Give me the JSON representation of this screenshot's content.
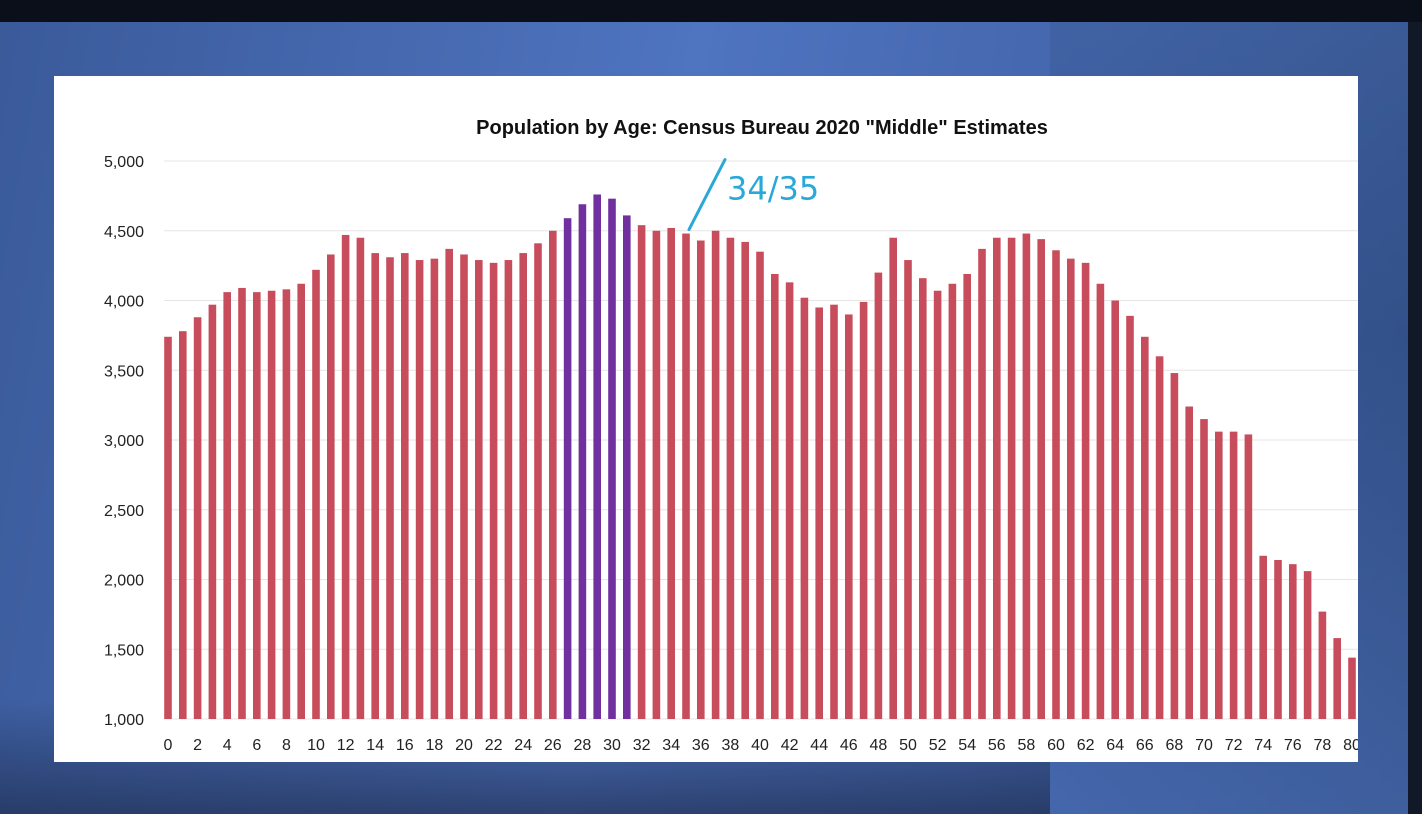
{
  "chart_data": {
    "type": "bar",
    "title": "Population by Age: Census Bureau 2020 \"Middle\" Estimates",
    "xlabel": "",
    "ylabel": "",
    "ylim": [
      1000,
      5000
    ],
    "yticks": [
      "1,000",
      "1,500",
      "2,000",
      "2,500",
      "3,000",
      "3,500",
      "4,000",
      "4,500",
      "5,000"
    ],
    "ytick_values": [
      1000,
      1500,
      2000,
      2500,
      3000,
      3500,
      4000,
      4500,
      5000
    ],
    "xticks": [
      "0",
      "2",
      "4",
      "6",
      "8",
      "10",
      "12",
      "14",
      "16",
      "18",
      "20",
      "22",
      "24",
      "26",
      "28",
      "30",
      "32",
      "34",
      "36",
      "38",
      "40",
      "42",
      "44",
      "46",
      "48",
      "50",
      "52",
      "54",
      "56",
      "58",
      "60",
      "62",
      "64",
      "66",
      "68",
      "70",
      "72",
      "74",
      "76",
      "78",
      "80"
    ],
    "categories": [
      0,
      1,
      2,
      3,
      4,
      5,
      6,
      7,
      8,
      9,
      10,
      11,
      12,
      13,
      14,
      15,
      16,
      17,
      18,
      19,
      20,
      21,
      22,
      23,
      24,
      25,
      26,
      27,
      28,
      29,
      30,
      31,
      32,
      33,
      34,
      35,
      36,
      37,
      38,
      39,
      40,
      41,
      42,
      43,
      44,
      45,
      46,
      47,
      48,
      49,
      50,
      51,
      52,
      53,
      54,
      55,
      56,
      57,
      58,
      59,
      60,
      61,
      62,
      63,
      64,
      65,
      66,
      67,
      68,
      69,
      70,
      71,
      72,
      73,
      74,
      75,
      76,
      77,
      78,
      79,
      80
    ],
    "values": [
      3740,
      3780,
      3880,
      3970,
      4060,
      4090,
      4060,
      4070,
      4080,
      4120,
      4220,
      4330,
      4470,
      4450,
      4340,
      4310,
      4340,
      4290,
      4300,
      4370,
      4330,
      4290,
      4270,
      4290,
      4340,
      4410,
      4500,
      4590,
      4690,
      4760,
      4730,
      4610,
      4540,
      4500,
      4520,
      4480,
      4430,
      4500,
      4450,
      4420,
      4350,
      4190,
      4130,
      4020,
      3950,
      3970,
      3900,
      3990,
      4200,
      4450,
      4290,
      4160,
      4070,
      4120,
      4190,
      4370,
      4450,
      4450,
      4480,
      4440,
      4360,
      4300,
      4270,
      4120,
      4000,
      3890,
      3740,
      3600,
      3480,
      3240,
      3150,
      3060,
      3060,
      3040,
      2170,
      2140,
      2110,
      2060,
      1770,
      1580,
      1440
    ],
    "highlight_range": [
      27,
      31
    ],
    "colors": {
      "bar": "#c84d5c",
      "highlight": "#7030a0",
      "annotation": "#2aa8d8",
      "grid": "#e6e6e6"
    },
    "grid": true,
    "legend": "none",
    "annotation": {
      "text": "34/35",
      "at_category": 35
    }
  }
}
